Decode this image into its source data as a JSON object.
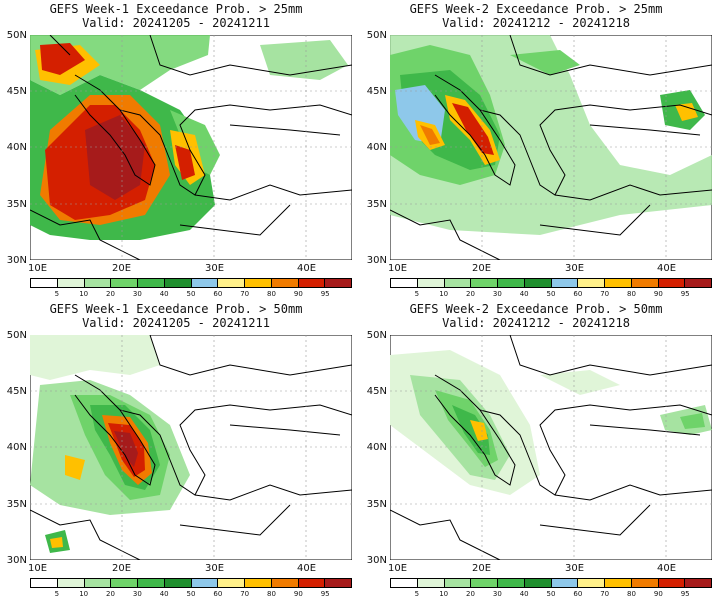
{
  "colorbar": {
    "levels": [
      "5",
      "10",
      "20",
      "30",
      "40",
      "50",
      "60",
      "70",
      "80",
      "90",
      "95"
    ],
    "colors": [
      "#ffffff",
      "#e0f5d8",
      "#a6e3a1",
      "#6fd36a",
      "#3fb84a",
      "#1f8f2e",
      "#8ec8ea",
      "#fff08a",
      "#ffc000",
      "#f07b00",
      "#d41f00",
      "#a61b1b"
    ]
  },
  "axes": {
    "lat_labels": [
      "50N",
      "45N",
      "40N",
      "35N",
      "30N"
    ],
    "lon_labels": [
      "10E",
      "20E",
      "30E",
      "40E"
    ]
  },
  "panels": [
    {
      "title": "GEFS Week-1 Exceedance Prob. > 25mm",
      "valid": "Valid: 20241205 - 20241211"
    },
    {
      "title": "GEFS Week-2 Exceedance Prob. > 25mm",
      "valid": "Valid: 20241212 - 20241218"
    },
    {
      "title": "GEFS Week-1 Exceedance Prob. > 50mm",
      "valid": "Valid: 20241205 - 20241211"
    },
    {
      "title": "GEFS Week-2 Exceedance Prob. > 50mm",
      "valid": "Valid: 20241212 - 20241218"
    }
  ]
}
